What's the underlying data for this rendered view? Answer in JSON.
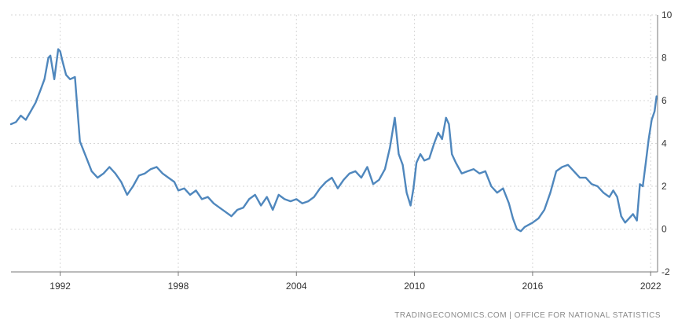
{
  "chart_data": {
    "type": "line",
    "title": "",
    "xlabel": "",
    "ylabel": "",
    "xlim": [
      1989.5,
      2022.35
    ],
    "ylim": [
      -2,
      10
    ],
    "x_ticks": [
      "1992",
      "1998",
      "2004",
      "2010",
      "2016",
      "2022"
    ],
    "y_ticks": [
      "-2",
      "0",
      "2",
      "4",
      "6",
      "8",
      "10"
    ],
    "grid": true,
    "legend": "none",
    "color": "#4f87bd",
    "series": [
      {
        "x": [
          1989.5,
          1989.75,
          1990.0,
          1990.25,
          1990.5,
          1990.75,
          1991.0,
          1991.2,
          1991.4,
          1991.5,
          1991.7,
          1991.9,
          1992.0,
          1992.1,
          1992.3,
          1992.5,
          1992.75,
          1993.0,
          1993.3,
          1993.6,
          1993.9,
          1994.2,
          1994.5,
          1994.8,
          1995.1,
          1995.4,
          1995.7,
          1996.0,
          1996.3,
          1996.6,
          1996.9,
          1997.2,
          1997.5,
          1997.8,
          1998.0,
          1998.3,
          1998.6,
          1998.9,
          1999.2,
          1999.5,
          1999.8,
          2000.1,
          2000.4,
          2000.7,
          2001.0,
          2001.3,
          2001.6,
          2001.9,
          2002.2,
          2002.5,
          2002.8,
          2003.1,
          2003.4,
          2003.7,
          2004.0,
          2004.3,
          2004.6,
          2004.9,
          2005.2,
          2005.5,
          2005.8,
          2006.1,
          2006.4,
          2006.7,
          2007.0,
          2007.3,
          2007.6,
          2007.9,
          2008.2,
          2008.5,
          2008.75,
          2009.0,
          2009.2,
          2009.4,
          2009.6,
          2009.8,
          2009.95,
          2010.1,
          2010.3,
          2010.5,
          2010.75,
          2011.0,
          2011.2,
          2011.4,
          2011.6,
          2011.75,
          2011.9,
          2012.1,
          2012.4,
          2012.7,
          2013.0,
          2013.3,
          2013.6,
          2013.9,
          2014.2,
          2014.5,
          2014.8,
          2015.0,
          2015.2,
          2015.4,
          2015.6,
          2015.8,
          2016.0,
          2016.3,
          2016.6,
          2016.9,
          2017.2,
          2017.5,
          2017.8,
          2018.1,
          2018.4,
          2018.7,
          2019.0,
          2019.3,
          2019.6,
          2019.9,
          2020.1,
          2020.3,
          2020.5,
          2020.7,
          2020.9,
          2021.1,
          2021.3,
          2021.45,
          2021.6,
          2021.75,
          2021.9,
          2022.05,
          2022.2,
          2022.3
        ],
        "y": [
          4.9,
          5.0,
          5.3,
          5.1,
          5.5,
          5.9,
          6.5,
          7.0,
          8.0,
          8.1,
          7.0,
          8.4,
          8.3,
          7.9,
          7.2,
          7.0,
          7.1,
          4.1,
          3.4,
          2.7,
          2.4,
          2.6,
          2.9,
          2.6,
          2.2,
          1.6,
          2.0,
          2.5,
          2.6,
          2.8,
          2.9,
          2.6,
          2.4,
          2.2,
          1.8,
          1.9,
          1.6,
          1.8,
          1.4,
          1.5,
          1.2,
          1.0,
          0.8,
          0.6,
          0.9,
          1.0,
          1.4,
          1.6,
          1.1,
          1.5,
          0.9,
          1.6,
          1.4,
          1.3,
          1.4,
          1.2,
          1.3,
          1.5,
          1.9,
          2.2,
          2.4,
          1.9,
          2.3,
          2.6,
          2.7,
          2.4,
          2.9,
          2.1,
          2.3,
          2.8,
          3.8,
          5.2,
          3.5,
          3.0,
          1.7,
          1.1,
          1.9,
          3.1,
          3.5,
          3.2,
          3.3,
          4.0,
          4.5,
          4.2,
          5.2,
          4.9,
          3.5,
          3.1,
          2.6,
          2.7,
          2.8,
          2.6,
          2.7,
          2.0,
          1.7,
          1.9,
          1.2,
          0.5,
          0.0,
          -0.1,
          0.1,
          0.2,
          0.3,
          0.5,
          0.9,
          1.7,
          2.7,
          2.9,
          3.0,
          2.7,
          2.4,
          2.4,
          2.1,
          2.0,
          1.7,
          1.5,
          1.8,
          1.5,
          0.6,
          0.3,
          0.5,
          0.7,
          0.4,
          2.1,
          2.0,
          3.1,
          4.2,
          5.1,
          5.5,
          6.2
        ]
      }
    ]
  },
  "source_credit": "TRADINGECONOMICS.COM  |  OFFICE FOR NATIONAL STATISTICS"
}
